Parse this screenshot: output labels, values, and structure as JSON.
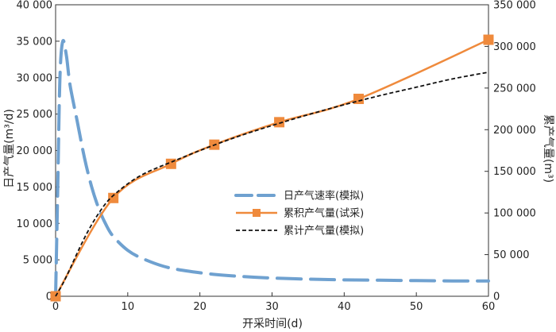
{
  "chart_data": {
    "type": "line",
    "xlabel": "开采时间(d)",
    "ylabel_left": "日产气量(m³/d)",
    "ylabel_right": "累产气量(m³)",
    "xlim": [
      0,
      60
    ],
    "ylim_left": [
      0,
      40000
    ],
    "ylim_right": [
      0,
      350000
    ],
    "xticks": [
      0,
      10,
      20,
      30,
      40,
      50,
      60
    ],
    "xtick_labels": [
      "0",
      "10",
      "20",
      "30",
      "40",
      "50",
      "60"
    ],
    "yticks_left": [
      0,
      5000,
      10000,
      15000,
      20000,
      25000,
      30000,
      35000,
      40000
    ],
    "ytick_labels_left": [
      "0",
      "5 000",
      "10 000",
      "15 000",
      "20 000",
      "25 000",
      "30 000",
      "35 000",
      "40 000"
    ],
    "yticks_right": [
      0,
      50000,
      100000,
      150000,
      200000,
      250000,
      300000,
      350000
    ],
    "ytick_labels_right": [
      "0",
      "50 000",
      "100 000",
      "150 000",
      "200 000",
      "250 000",
      "300 000",
      "350 000"
    ],
    "grid": false,
    "legend_position": "center-right",
    "series": [
      {
        "name": "日产气速率(模拟)",
        "axis": "left",
        "style": "long-dash",
        "color": "#6fa1d0",
        "x": [
          0,
          0.3,
          0.6,
          1,
          1.5,
          2,
          3,
          4,
          5,
          6,
          7,
          8,
          10,
          12,
          15,
          18,
          22,
          26,
          30,
          35,
          40,
          45,
          50,
          55,
          60
        ],
        "y": [
          0,
          15000,
          30000,
          35000,
          33000,
          29000,
          24000,
          19000,
          15000,
          12000,
          9800,
          8200,
          6300,
          5200,
          4100,
          3500,
          3000,
          2700,
          2500,
          2350,
          2250,
          2200,
          2150,
          2100,
          2100
        ]
      },
      {
        "name": "累积产气量(试采)",
        "axis": "right",
        "style": "solid-square",
        "color": "#ef8a3c",
        "x": [
          0,
          8,
          16,
          22,
          31,
          42,
          60
        ],
        "y": [
          0,
          118000,
          159000,
          182000,
          209000,
          237000,
          308000
        ]
      },
      {
        "name": "累计产气量(模拟)",
        "axis": "right",
        "style": "short-dash",
        "color": "#111111",
        "x": [
          0,
          1,
          2,
          3,
          4,
          5,
          6,
          7,
          8,
          10,
          12,
          14,
          16,
          20,
          25,
          30,
          35,
          40,
          45,
          50,
          55,
          60
        ],
        "y": [
          0,
          15000,
          33000,
          52000,
          70000,
          86000,
          100000,
          112000,
          121000,
          135000,
          146000,
          154000,
          161000,
          175000,
          191000,
          205000,
          218000,
          230000,
          241000,
          251000,
          261000,
          269000
        ]
      }
    ]
  }
}
